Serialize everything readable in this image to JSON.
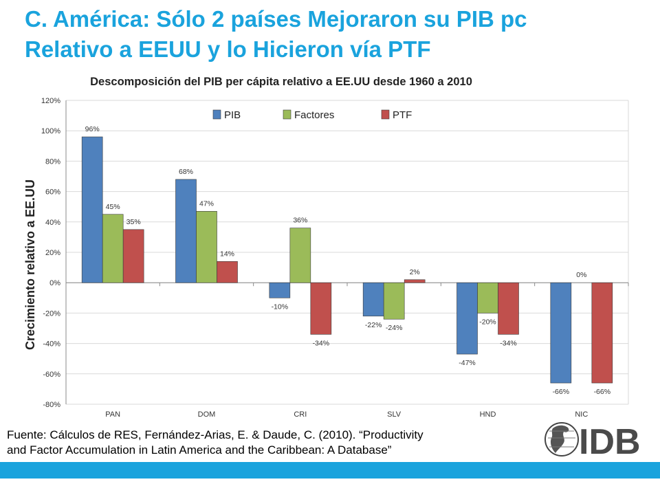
{
  "slide": {
    "title_line1": "C. América: Sólo 2 países Mejoraron su PIB pc",
    "title_line2": "Relativo a EEUU y lo Hicieron vía PTF",
    "source_line1": "Fuente: Cálculos de RES, Fernández-Arias, E. & Daude, C. (2010). “Productivity",
    "source_line2": "and Factor Accumulation in Latin America and the Caribbean: A Database”",
    "logo_text": "IDB",
    "accent_color": "#1aa3dd"
  },
  "chart_data": {
    "type": "bar",
    "title": "Descomposición del PIB per cápita relativo a EE.UU desde 1960 a 2010",
    "xlabel": "",
    "ylabel": "Crecimiento relativo a EE.UU",
    "categories": [
      "PAN",
      "DOM",
      "CRI",
      "SLV",
      "HND",
      "NIC"
    ],
    "series": [
      {
        "name": "PIB",
        "color": "#4f81bd",
        "values": [
          96,
          68,
          -10,
          -22,
          -47,
          -66
        ],
        "labels": [
          "96%",
          "68%",
          "-10%",
          "-22%",
          "-47%",
          "-66%"
        ]
      },
      {
        "name": "Factores",
        "color": "#9bbb59",
        "values": [
          45,
          47,
          36,
          -24,
          -20,
          0
        ],
        "labels": [
          "45%",
          "47%",
          "36%",
          "-24%",
          "-20%",
          "0%"
        ]
      },
      {
        "name": "PTF",
        "color": "#c0504d",
        "values": [
          35,
          14,
          -34,
          2,
          -34,
          -66
        ],
        "labels": [
          "35%",
          "14%",
          "-34%",
          "2%",
          "-34%",
          "-66%"
        ]
      }
    ],
    "ylim": [
      -80,
      120
    ],
    "yticks": [
      -80,
      -60,
      -40,
      -20,
      0,
      20,
      40,
      60,
      80,
      100,
      120
    ],
    "ytick_labels": [
      "-80%",
      "-60%",
      "-40%",
      "-20%",
      "0%",
      "20%",
      "40%",
      "60%",
      "80%",
      "100%",
      "120%"
    ],
    "grid": true,
    "legend_position": "top-center"
  }
}
